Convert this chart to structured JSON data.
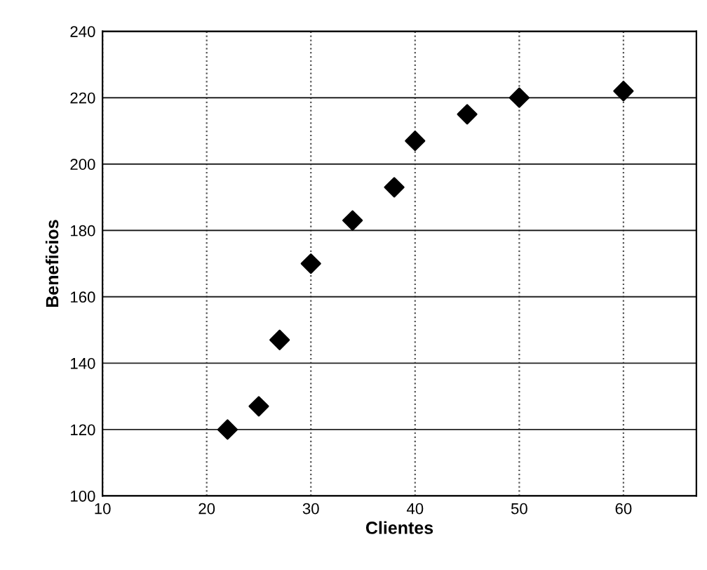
{
  "chart_data": {
    "type": "scatter",
    "xlabel": "Clientes",
    "ylabel": "Beneficios",
    "x": [
      22,
      25,
      27,
      30,
      34,
      38,
      40,
      45,
      50,
      60
    ],
    "values": [
      120,
      127,
      147,
      170,
      183,
      193,
      207,
      215,
      220,
      222
    ],
    "color": "#000000",
    "marker": "diamond",
    "xlim": [
      10,
      67
    ],
    "xticks": [
      10,
      20,
      30,
      40,
      50,
      60
    ],
    "ylim": [
      100,
      240
    ],
    "yticks": [
      100,
      120,
      140,
      160,
      180,
      200,
      220,
      240
    ],
    "grid": true,
    "legend": false
  }
}
